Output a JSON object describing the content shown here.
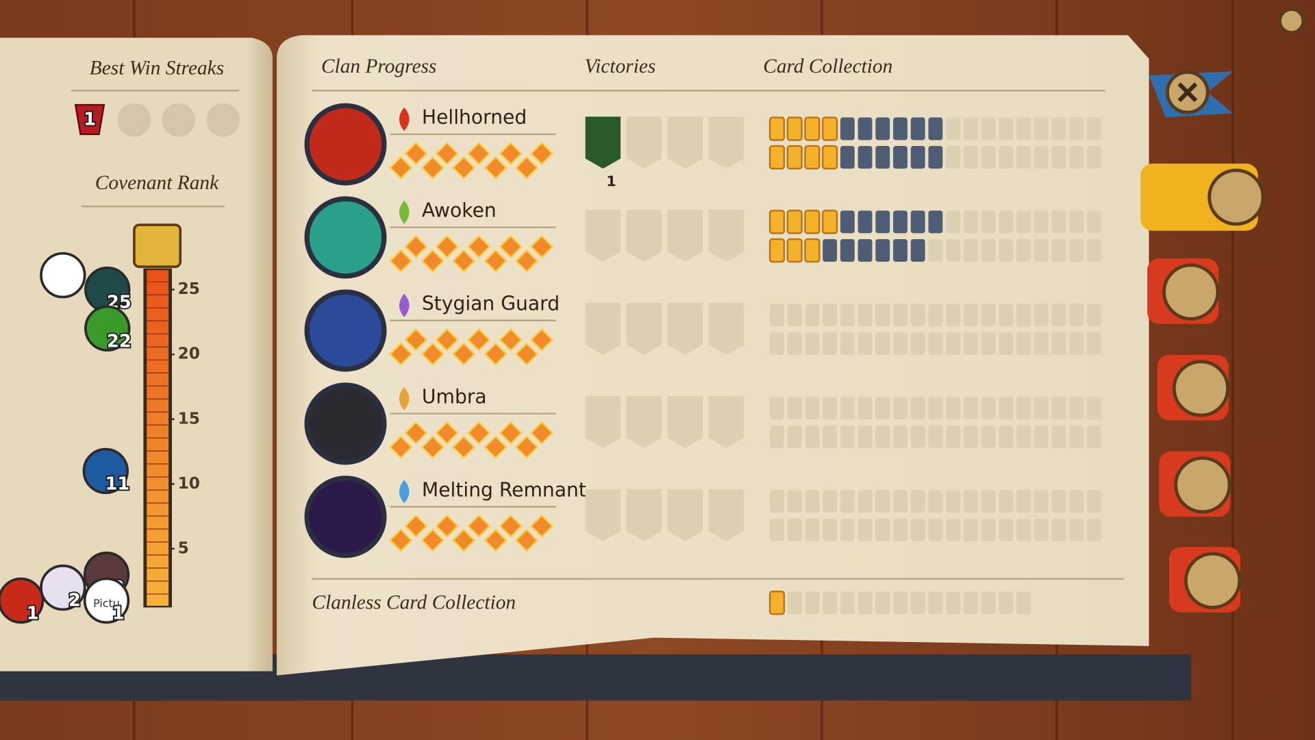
{
  "best_win_streaks": {
    "title": "Best Win Streaks",
    "streak": 1
  },
  "covenant_rank": {
    "title": "Covenant Rank",
    "ylim": [
      0.6,
      26.5
    ],
    "ticks": [
      5,
      10,
      15,
      20,
      25
    ],
    "players": [
      {
        "rank": 25
      },
      {
        "rank": 22
      },
      {
        "rank": 11
      },
      {
        "rank": 3
      },
      {
        "rank": 2
      },
      {
        "rank": 1
      },
      {
        "rank": 1,
        "avatar_text": "Pictu"
      }
    ]
  },
  "clan_progress": {
    "headers": {
      "clan": "Clan Progress",
      "victories": "Victories",
      "cards": "Card Collection"
    },
    "clans": [
      {
        "name": "Hellhorned",
        "color": "#d8321e",
        "victories": [
          1,
          0,
          0,
          0
        ],
        "victory_count": 1,
        "cards": [
          {
            "gold": 4,
            "owned": 6,
            "total": 19
          },
          {
            "gold": 4,
            "owned": 6,
            "total": 19
          }
        ]
      },
      {
        "name": "Awoken",
        "color": "#7ab83a",
        "victories": [
          0,
          0,
          0,
          0
        ],
        "cards": [
          {
            "gold": 4,
            "owned": 6,
            "total": 19
          },
          {
            "gold": 3,
            "owned": 6,
            "total": 19
          }
        ]
      },
      {
        "name": "Stygian Guard",
        "color": "#9a5bd0",
        "victories": [
          0,
          0,
          0,
          0
        ],
        "cards": [
          {
            "gold": 0,
            "owned": 0,
            "total": 19
          },
          {
            "gold": 0,
            "owned": 0,
            "total": 19
          }
        ]
      },
      {
        "name": "Umbra",
        "color": "#e2a53a",
        "victories": [
          0,
          0,
          0,
          0
        ],
        "cards": [
          {
            "gold": 0,
            "owned": 0,
            "total": 19
          },
          {
            "gold": 0,
            "owned": 0,
            "total": 19
          }
        ]
      },
      {
        "name": "Melting Remnant",
        "color": "#4a9ee0",
        "victories": [
          0,
          0,
          0,
          0
        ],
        "cards": [
          {
            "gold": 0,
            "owned": 0,
            "total": 19
          },
          {
            "gold": 0,
            "owned": 0,
            "total": 19
          }
        ]
      }
    ],
    "clanless": {
      "label": "Clanless Card Collection",
      "gold": 1,
      "owned": 0,
      "total": 15
    }
  }
}
